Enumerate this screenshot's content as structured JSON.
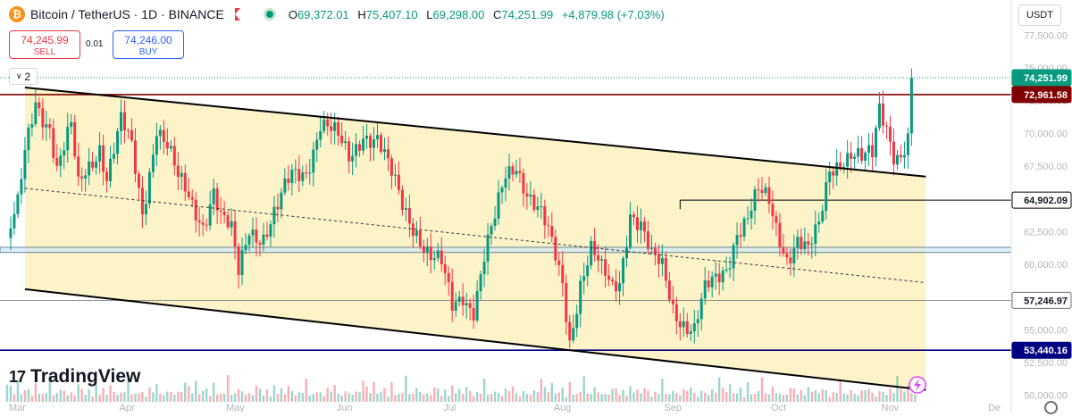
{
  "header": {
    "logo_letter": "₿",
    "symbol_text": "Bitcoin / TetherUS · 1D · BINANCE",
    "open_label": "O",
    "open_value": "69,372.01",
    "high_label": "H",
    "high_value": "75,407.10",
    "low_label": "L",
    "low_value": "69,298.00",
    "close_label": "C",
    "close_value": "74,251.99",
    "change": "+4,879.98 (+7.03%)"
  },
  "currency": "USDT",
  "trade": {
    "sell_price": "74,245.99",
    "sell_label": "SELL",
    "spread": "0.01",
    "buy_price": "74,246.00",
    "buy_label": "BUY"
  },
  "indicator_count": "2",
  "branding": "TradingView",
  "colors": {
    "up": "#089981",
    "down": "#f23645",
    "channel_fill": "#fdf3c9",
    "channel_line": "#000000",
    "resistance": "#800000",
    "support": "#000080",
    "zone": "#cfe8f5"
  },
  "chart_data": {
    "type": "candlestick",
    "symbol": "Bitcoin / TetherUS",
    "interval": "1D",
    "ylim": [
      49500,
      79500
    ],
    "y_ticks": [
      50000,
      52500,
      55000,
      57500,
      60000,
      62500,
      65000,
      67500,
      70000,
      72500,
      75000,
      77500
    ],
    "y_tick_labels": [
      "50,000.00",
      "52,500.00",
      "55,000.00",
      "57,500.00",
      "60,000.00",
      "62,500.00",
      "65,000.00",
      "67,500.00",
      "70,000.00",
      "72,500.00",
      "75,000.00",
      "77,500.00"
    ],
    "x_tick_labels": [
      {
        "label": "Mar",
        "day": 0
      },
      {
        "label": "Apr",
        "day": 31
      },
      {
        "label": "May",
        "day": 61
      },
      {
        "label": "Jun",
        "day": 92
      },
      {
        "label": "Jul",
        "day": 122
      },
      {
        "label": "Aug",
        "day": 153
      },
      {
        "label": "Sep",
        "day": 184
      },
      {
        "label": "Oct",
        "day": 214
      },
      {
        "label": "Nov",
        "day": 245
      },
      {
        "label": "De",
        "day": 275
      }
    ],
    "day_range": [
      -2,
      282
    ],
    "price_points": [
      [
        0,
        62000
      ],
      [
        3,
        64000
      ],
      [
        5,
        68000
      ],
      [
        8,
        72500
      ],
      [
        12,
        71000
      ],
      [
        14,
        67500
      ],
      [
        18,
        70000
      ],
      [
        20,
        65500
      ],
      [
        22,
        67000
      ],
      [
        26,
        69500
      ],
      [
        28,
        67000
      ],
      [
        32,
        70500
      ],
      [
        35,
        68500
      ],
      [
        38,
        64000
      ],
      [
        42,
        71000
      ],
      [
        45,
        69000
      ],
      [
        48,
        66000
      ],
      [
        52,
        64500
      ],
      [
        55,
        63500
      ],
      [
        58,
        66000
      ],
      [
        60,
        63500
      ],
      [
        63,
        62000
      ],
      [
        65,
        59000
      ],
      [
        68,
        63000
      ],
      [
        72,
        62500
      ],
      [
        76,
        64000
      ],
      [
        80,
        66500
      ],
      [
        84,
        67500
      ],
      [
        88,
        71000
      ],
      [
        92,
        69500
      ],
      [
        96,
        68000
      ],
      [
        100,
        70500
      ],
      [
        104,
        69500
      ],
      [
        107,
        67000
      ],
      [
        111,
        64500
      ],
      [
        115,
        63000
      ],
      [
        119,
        60500
      ],
      [
        122,
        59500
      ],
      [
        125,
        56500
      ],
      [
        128,
        58000
      ],
      [
        131,
        57000
      ],
      [
        134,
        60500
      ],
      [
        137,
        63000
      ],
      [
        140,
        66500
      ],
      [
        143,
        68000
      ],
      [
        146,
        66000
      ],
      [
        150,
        63500
      ],
      [
        153,
        61000
      ],
      [
        156,
        58500
      ],
      [
        158,
        54500
      ],
      [
        161,
        59000
      ],
      [
        164,
        61000
      ],
      [
        167,
        59000
      ],
      [
        170,
        58000
      ],
      [
        172,
        59000
      ],
      [
        175,
        64500
      ],
      [
        178,
        63000
      ],
      [
        181,
        60000
      ],
      [
        184,
        59500
      ],
      [
        187,
        57000
      ],
      [
        190,
        56000
      ],
      [
        193,
        55000
      ],
      [
        196,
        57500
      ],
      [
        199,
        58500
      ],
      [
        202,
        60000
      ],
      [
        205,
        63000
      ],
      [
        208,
        63500
      ],
      [
        211,
        65000
      ],
      [
        214,
        64500
      ],
      [
        216,
        63000
      ],
      [
        219,
        61000
      ],
      [
        222,
        62000
      ],
      [
        225,
        60500
      ],
      [
        228,
        62500
      ],
      [
        231,
        67500
      ],
      [
        234,
        68500
      ],
      [
        237,
        68500
      ],
      [
        240,
        67500
      ],
      [
        243,
        68000
      ],
      [
        245,
        72000
      ],
      [
        247,
        71000
      ],
      [
        249,
        69000
      ],
      [
        251,
        68500
      ],
      [
        253,
        69300
      ],
      [
        254,
        74252
      ]
    ],
    "volume_samples": [
      32,
      18,
      12,
      25,
      10,
      14,
      16,
      8,
      22,
      12,
      9,
      15,
      30,
      11,
      10,
      18,
      13,
      9,
      12,
      8,
      24,
      15,
      11,
      14,
      9,
      19,
      12,
      16,
      10,
      20,
      13,
      9,
      11,
      14,
      26,
      12,
      9,
      15,
      11,
      8,
      17,
      13,
      22,
      10,
      9,
      12,
      15,
      8,
      18,
      11
    ],
    "levels": [
      {
        "label": "74,251.99",
        "value": 74251.99,
        "color": "#089981",
        "kind": "last-price"
      },
      {
        "label": "72,961.58",
        "value": 72961.58,
        "color": "#800000",
        "kind": "horizontal-line"
      },
      {
        "label": "64,902.09",
        "value": 64902.09,
        "color": "#000000",
        "kind": "horizontal-ray"
      },
      {
        "label": "57,246.97",
        "value": 57246.97,
        "color": "#707070",
        "kind": "horizontal-line"
      },
      {
        "label": "53,440.16",
        "value": 53440.16,
        "color": "#000080",
        "kind": "horizontal-line"
      }
    ],
    "zone": {
      "low": 60900,
      "high": 61300
    },
    "channel": {
      "upper": [
        [
          5,
          73500
        ],
        [
          258,
          66700
        ]
      ],
      "lower": [
        [
          5,
          58100
        ],
        [
          258,
          50400
        ]
      ],
      "midline": [
        [
          5,
          65800
        ],
        [
          258,
          58600
        ]
      ],
      "x_end": 258
    },
    "grid": false
  }
}
